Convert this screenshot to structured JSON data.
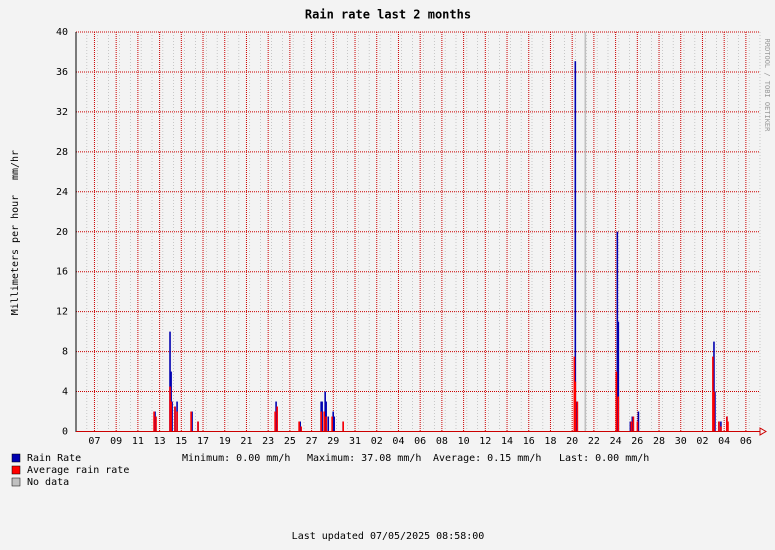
{
  "chart_data": {
    "type": "bar",
    "title": "Rain rate last 2 months",
    "ylabel": "Millimeters per hour",
    "unit_label": "mm/hr",
    "side_text": "RRDTOOL / TOBI OETIKER",
    "stats": [
      "Minimum:  0.00 mm/h",
      "Maximum: 37.08 mm/h",
      "Average:  0.15 mm/h",
      "Last:  0.00 mm/h"
    ],
    "footer": "Last updated 07/05/2025 08:58:00",
    "grid": true,
    "xlim": [
      0,
      63
    ],
    "ylim": [
      0,
      40
    ],
    "yticks": [
      0,
      4,
      8,
      12,
      16,
      20,
      24,
      28,
      32,
      36,
      40
    ],
    "xticks": [
      {
        "value": 1.7,
        "label": "07"
      },
      {
        "value": 3.7,
        "label": "09"
      },
      {
        "value": 5.7,
        "label": "11"
      },
      {
        "value": 7.7,
        "label": "13"
      },
      {
        "value": 9.7,
        "label": "15"
      },
      {
        "value": 11.7,
        "label": "17"
      },
      {
        "value": 13.7,
        "label": "19"
      },
      {
        "value": 15.7,
        "label": "21"
      },
      {
        "value": 17.7,
        "label": "23"
      },
      {
        "value": 19.7,
        "label": "25"
      },
      {
        "value": 21.7,
        "label": "27"
      },
      {
        "value": 23.7,
        "label": "29"
      },
      {
        "value": 25.7,
        "label": "31"
      },
      {
        "value": 27.7,
        "label": "02"
      },
      {
        "value": 29.7,
        "label": "04"
      },
      {
        "value": 31.7,
        "label": "06"
      },
      {
        "value": 33.7,
        "label": "08"
      },
      {
        "value": 35.7,
        "label": "10"
      },
      {
        "value": 37.7,
        "label": "12"
      },
      {
        "value": 39.7,
        "label": "14"
      },
      {
        "value": 41.7,
        "label": "16"
      },
      {
        "value": 43.7,
        "label": "18"
      },
      {
        "value": 45.7,
        "label": "20"
      },
      {
        "value": 47.7,
        "label": "22"
      },
      {
        "value": 49.7,
        "label": "24"
      },
      {
        "value": 51.7,
        "label": "26"
      },
      {
        "value": 53.7,
        "label": "28"
      },
      {
        "value": 55.7,
        "label": "30"
      },
      {
        "value": 57.7,
        "label": "02"
      },
      {
        "value": 59.7,
        "label": "04"
      },
      {
        "value": 61.7,
        "label": "06"
      }
    ],
    "series": [
      {
        "name": "Rain Rate",
        "color": "#0000b0",
        "x": [
          7.28,
          8.66,
          8.76,
          8.85,
          9.12,
          9.31,
          10.69,
          11.24,
          18.43,
          20.65,
          22.58,
          22.67,
          22.95,
          23.04,
          23.23,
          23.69,
          23.78,
          24.61,
          45.99,
          46.08,
          49.86,
          49.95,
          51.06,
          51.24,
          51.8,
          58.76,
          58.85,
          59.22,
          59.4,
          59.95
        ],
        "values": [
          2,
          10,
          6,
          3,
          2.5,
          3,
          2,
          1,
          3,
          1,
          3,
          3,
          4,
          3,
          1.5,
          2,
          1.5,
          1,
          37.08,
          3,
          20,
          11,
          1,
          1.5,
          2,
          9,
          4,
          1,
          1,
          1.5
        ]
      },
      {
        "name": "Average rain rate",
        "color": "#ff0000",
        "x": [
          7.19,
          7.37,
          8.66,
          8.76,
          9.12,
          9.31,
          10.6,
          11.24,
          18.34,
          18.53,
          20.55,
          20.74,
          22.58,
          22.86,
          23.04,
          23.59,
          24.61,
          45.9,
          45.99,
          46.18,
          49.77,
          49.95,
          51.15,
          51.34,
          51.71,
          58.66,
          58.76,
          59.22,
          59.4,
          59.95,
          60.05
        ],
        "values": [
          2,
          1.5,
          4.5,
          3,
          2.5,
          2,
          2,
          1,
          2,
          2.5,
          1,
          0.5,
          2,
          2,
          1.5,
          1.5,
          1,
          7.5,
          5,
          3,
          6,
          3.5,
          1,
          1.5,
          1,
          7.5,
          4,
          1,
          0.5,
          1.5,
          1
        ]
      },
      {
        "name": "No data",
        "color": "#c0c0c0",
        "x": [
          46.91
        ],
        "values": [
          40
        ]
      }
    ]
  }
}
